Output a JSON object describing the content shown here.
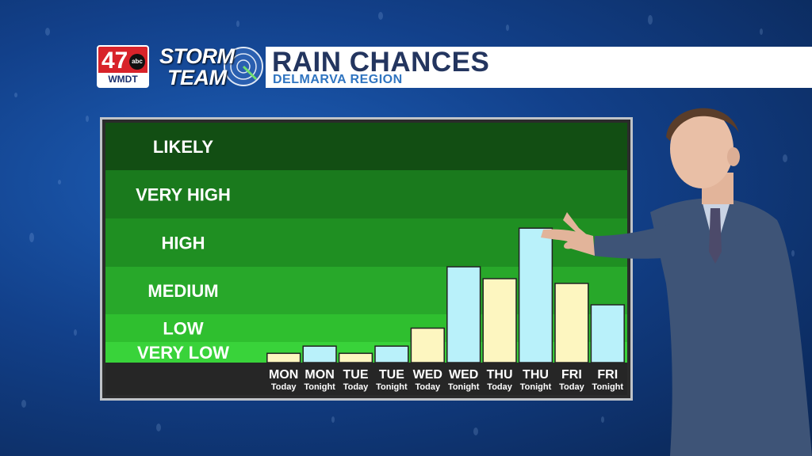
{
  "header": {
    "station_number": "47",
    "network": "abc",
    "call_sign": "WMDT",
    "brand_line1": "STORM",
    "brand_line2": "TEAM",
    "title": "RAIN CHANCES",
    "subtitle": "DELMARVA REGION"
  },
  "chart_data": {
    "type": "bar",
    "levels": [
      "VERY LOW",
      "LOW",
      "MEDIUM",
      "HIGH",
      "VERY HIGH",
      "LIKELY"
    ],
    "level_colors": [
      "#39d33a",
      "#2fbf2f",
      "#28a82a",
      "#1f8f22",
      "#1a7a1d",
      "#124e13"
    ],
    "categories": [
      {
        "day": "MON",
        "period": "Today"
      },
      {
        "day": "MON",
        "period": "Tonight"
      },
      {
        "day": "TUE",
        "period": "Today"
      },
      {
        "day": "TUE",
        "period": "Tonight"
      },
      {
        "day": "WED",
        "period": "Today"
      },
      {
        "day": "WED",
        "period": "Tonight"
      },
      {
        "day": "THU",
        "period": "Today"
      },
      {
        "day": "THU",
        "period": "Tonight"
      },
      {
        "day": "FRI",
        "period": "Today"
      },
      {
        "day": "FRI",
        "period": "Tonight"
      }
    ],
    "values": [
      0.45,
      0.8,
      0.45,
      0.8,
      1.5,
      3.0,
      2.75,
      3.8,
      2.65,
      2.2
    ],
    "bar_colors": {
      "Today": "#fdf6c0",
      "Tonight": "#b9f1fa"
    },
    "ylim": [
      0,
      5
    ]
  }
}
